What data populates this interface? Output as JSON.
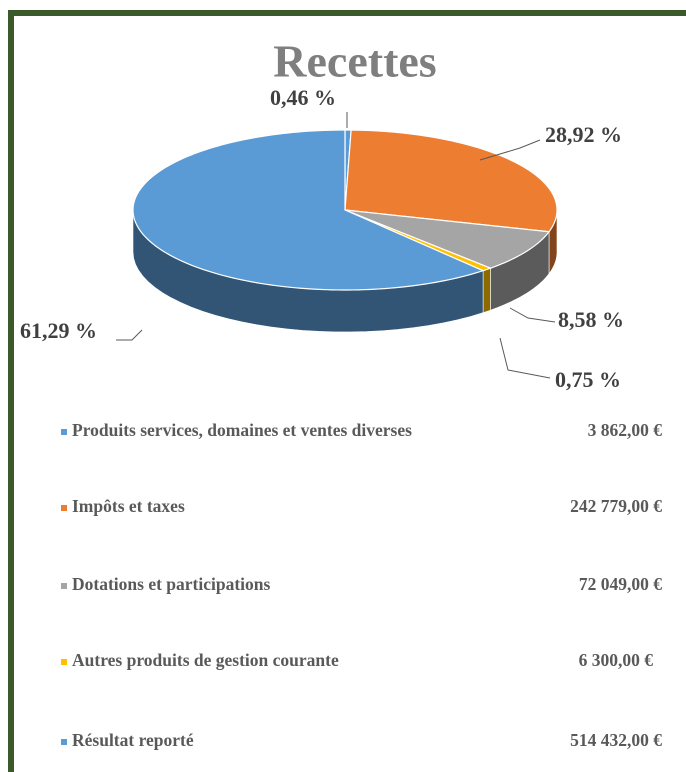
{
  "chart_data": {
    "type": "pie",
    "title": "Recettes",
    "categories": [
      "Produits services, domaines et ventes diverses",
      "Impôts et taxes",
      "Dotations et participations",
      "Autres produits de gestion courante",
      "Résultat reporté"
    ],
    "values": [
      0.46,
      28.92,
      8.58,
      0.75,
      61.29
    ],
    "value_labels": [
      "0,46 %",
      "28,92 %",
      "8,58 %",
      "0,75 %",
      "61,29 %"
    ],
    "amounts": [
      "3 862,00 €",
      "242 779,00 €",
      "72 049,00 €",
      "6 300,00 €",
      "514 432,00 €"
    ],
    "colors": [
      "#5b9bd5",
      "#ed7d31",
      "#a5a5a5",
      "#ffc000",
      "#5b9bd5"
    ]
  }
}
